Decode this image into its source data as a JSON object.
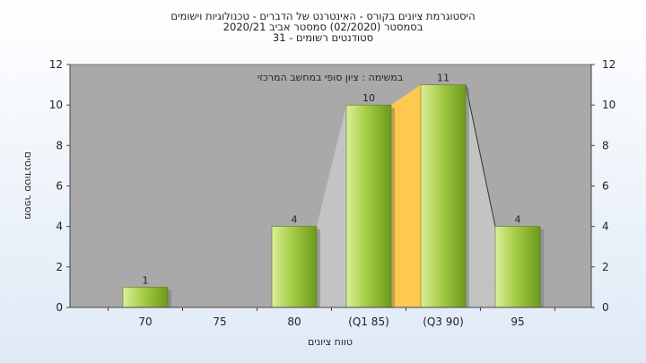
{
  "chart_data": {
    "type": "bar",
    "title_lines": [
      "היסטוגרמת ציונים בקורס - האינטרנט של הדברים - טכנולוגיות וישומים",
      "בסמסטר  (02/2020)  סמסטר אביב 2020/21",
      "סטודנטים רשומים - 31"
    ],
    "subtitle": "במשימה : ציון סופי במחשב המרכזי",
    "xlabel": "טווח ציונים",
    "ylabel": "מספר סטודנטים",
    "categories": [
      "70",
      "75",
      "80",
      "(Q1 85)",
      "(Q3 90)",
      "95"
    ],
    "values": [
      1,
      0,
      4,
      10,
      11,
      4
    ],
    "value_labels": [
      "1",
      "",
      "4",
      "10",
      "11",
      "4"
    ],
    "ylim": [
      0,
      12
    ],
    "yticks": [
      "0",
      "2",
      "4",
      "6",
      "8",
      "10",
      "12"
    ],
    "grid": false,
    "colors": {
      "bar_light": "#dcef9a",
      "bar_dark": "#6c9a1d",
      "quartile_band": "#ffc94f",
      "distribution_area": "#c3c3c3",
      "plot_background": "#a9a9a9"
    }
  }
}
